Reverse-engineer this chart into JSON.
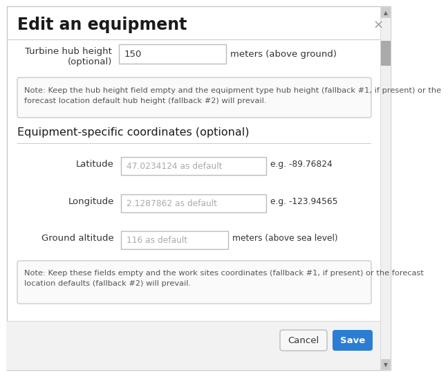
{
  "title": "Edit an equipment",
  "close_btn": "×",
  "field1_value": "150",
  "field1_unit": "meters (above ground)",
  "note1_line1": "Note: Keep the hub height field empty and the equipment type hub height (fallback #1, if present) or the",
  "note1_line2": "forecast location default hub height (fallback #2) will prevail.",
  "section_title": "Equipment-specific coordinates (optional)",
  "lat_label": "Latitude",
  "lat_value": "47.0234124 as default",
  "lat_example": "e.g. -89.76824",
  "lon_label": "Longitude",
  "lon_value": "2.1287862 as default",
  "lon_example": "e.g. -123.94565",
  "alt_label": "Ground altitude",
  "alt_value": "116 as default",
  "alt_unit": "meters (above sea level)",
  "note2_line1": "Note: Keep these fields empty and the work sites coordinates (fallback #1, if present) or the forecast",
  "note2_line2": "location defaults (fallback #2) will prevail.",
  "cancel_btn": "Cancel",
  "save_btn": "Save",
  "dialog_bg": "#ffffff",
  "footer_bg": "#f2f2f2",
  "outer_border": "#c8c8c8",
  "input_border": "#bbbbbb",
  "input_bg": "#ffffff",
  "input_placeholder_color": "#aaaaaa",
  "input_value_color": "#333333",
  "title_color": "#1a1a1a",
  "label_color": "#333333",
  "note_bg": "#fafafa",
  "note_border": "#cccccc",
  "section_line_color": "#cccccc",
  "save_btn_bg": "#2b7cd3",
  "save_btn_text": "#ffffff",
  "cancel_btn_bg": "#f7f7f7",
  "cancel_btn_border": "#bbbbbb",
  "cancel_btn_text": "#333333",
  "close_color": "#999999",
  "note_text_color": "#555555",
  "scrollbar_track": "#f0f0f0",
  "scrollbar_border": "#d0d0d0",
  "scrollbar_btn": "#cccccc",
  "scrollbar_thumb": "#aaaaaa",
  "footer_border": "#d8d8d8"
}
